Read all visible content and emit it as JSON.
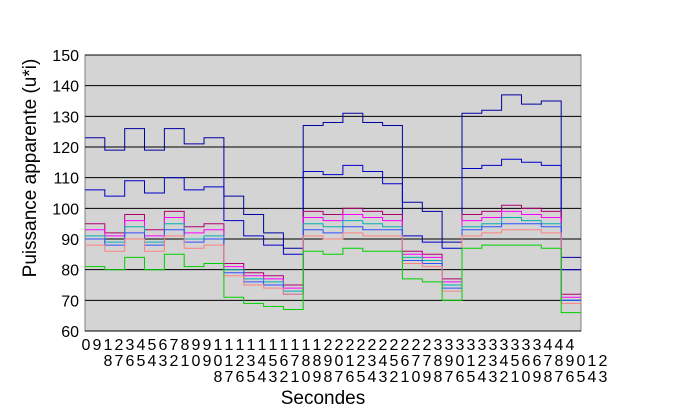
{
  "chart_data": {
    "type": "line",
    "title": "",
    "xlabel": "Secondes",
    "ylabel": "Puissance apparente (u*i)",
    "ylim": [
      60,
      150
    ],
    "yticks": [
      60,
      70,
      80,
      90,
      100,
      110,
      120,
      130,
      140,
      150
    ],
    "xrange": [
      0,
      449
    ],
    "x_tick_labels_row1": [
      "0",
      "9",
      "1",
      "2",
      "3",
      "4",
      "5",
      "6",
      "7",
      "8",
      "9",
      "9",
      "1",
      "1",
      "1",
      "1",
      "1",
      "1",
      "1",
      "1",
      "1",
      "1",
      "2",
      "2",
      "2",
      "2",
      "2",
      "2",
      "2",
      "2",
      "2",
      "2",
      "3",
      "3",
      "3",
      "3",
      "3",
      "3",
      "3",
      "3",
      "3",
      "3",
      "4",
      "4",
      "4"
    ],
    "x_tick_labels_row2": [
      "",
      "",
      "8",
      "7",
      "6",
      "5",
      "4",
      "3",
      "2",
      "1",
      "0",
      "9",
      "0",
      "1",
      "2",
      "3",
      "4",
      "5",
      "6",
      "7",
      "8",
      "8",
      "9",
      "0",
      "1",
      "2",
      "3",
      "4",
      "5",
      "6",
      "7",
      "7",
      "8",
      "9",
      "0",
      "1",
      "2",
      "3",
      "4",
      "5",
      "6",
      "6",
      "7",
      "8",
      "9",
      "0",
      "1",
      "2"
    ],
    "x_tick_labels_row3": [
      "",
      "",
      "",
      "",
      "",
      "",
      "",
      "",
      "",
      "",
      "",
      "",
      "8",
      "7",
      "6",
      "5",
      "4",
      "3",
      "2",
      "1",
      "0",
      "9",
      "8",
      "7",
      "6",
      "5",
      "4",
      "3",
      "2",
      "1",
      "0",
      "9",
      "8",
      "7",
      "6",
      "5",
      "4",
      "3",
      "2",
      "1",
      "0",
      "9",
      "8",
      "7",
      "6",
      "5",
      "4",
      "3"
    ],
    "grid": true,
    "legend": "none",
    "plot_background": "#d4d4d4",
    "segment_boundaries": [
      0,
      118,
      165,
      252,
      280,
      325,
      349,
      384,
      421,
      449
    ],
    "series": [
      {
        "color": "#0000a0",
        "levels": [
          123,
          119,
          126,
          119,
          126,
          121,
          123,
          104,
          98,
          92,
          87,
          127,
          128,
          131,
          128,
          127,
          102,
          99,
          89,
          131,
          132,
          137,
          134,
          135,
          84
        ]
      },
      {
        "color": "#0000c8",
        "levels": [
          106,
          104,
          109,
          105,
          110,
          106,
          107,
          96,
          91,
          88,
          85,
          112,
          111,
          114,
          112,
          108,
          91,
          89,
          87,
          113,
          114,
          116,
          115,
          114,
          80
        ]
      },
      {
        "color": "#b00070",
        "levels": [
          95,
          92,
          98,
          93,
          99,
          94,
          95,
          82,
          79,
          78,
          75,
          99,
          98,
          100,
          99,
          98,
          86,
          85,
          77,
          98,
          99,
          101,
          100,
          99,
          72
        ]
      },
      {
        "color": "#ff00ff",
        "levels": [
          93,
          91,
          96,
          91,
          97,
          92,
          93,
          81,
          78,
          77,
          74,
          97,
          96,
          98,
          97,
          96,
          85,
          84,
          76,
          96,
          97,
          99,
          98,
          97,
          71
        ]
      },
      {
        "color": "#00b0b0",
        "levels": [
          91,
          89,
          94,
          89,
          95,
          90,
          91,
          80,
          77,
          76,
          73,
          95,
          94,
          96,
          95,
          94,
          84,
          83,
          75,
          94,
          95,
          97,
          96,
          95,
          70
        ]
      },
      {
        "color": "#3050ff",
        "levels": [
          90,
          88,
          92,
          88,
          93,
          89,
          90,
          79,
          76,
          75,
          72,
          93,
          92,
          94,
          93,
          93,
          83,
          82,
          74,
          93,
          94,
          95,
          95,
          94,
          70
        ]
      },
      {
        "color": "#ff8080",
        "levels": [
          88,
          86,
          90,
          86,
          91,
          87,
          88,
          78,
          75,
          74,
          72,
          91,
          90,
          92,
          91,
          91,
          82,
          81,
          73,
          91,
          92,
          93,
          93,
          92,
          69
        ]
      },
      {
        "color": "#00d000",
        "levels": [
          81,
          80,
          84,
          80,
          85,
          81,
          82,
          71,
          69,
          68,
          67,
          86,
          85,
          87,
          86,
          86,
          77,
          76,
          70,
          87,
          88,
          88,
          88,
          87,
          66
        ]
      }
    ]
  }
}
